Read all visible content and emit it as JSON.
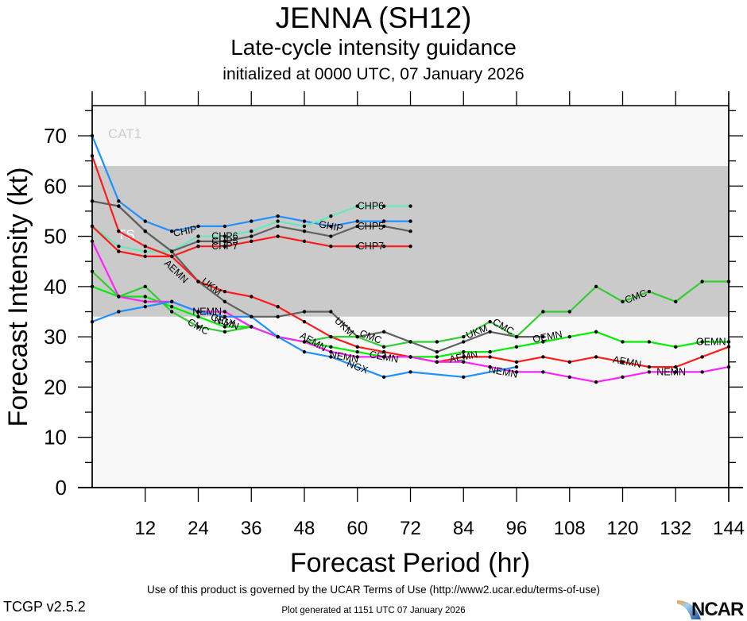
{
  "header": {
    "title": "JENNA (SH12)",
    "subtitle": "Late-cycle intensity guidance",
    "init": "initialized at 0000 UTC, 07 January 2026"
  },
  "footer": {
    "terms": "Use of this product is governed by the UCAR Terms of Use (http://www2.ucar.edu/terms-of-use)",
    "version": "TCGP v2.5.2",
    "generated": "Plot generated at 1151 UTC   07 January 2026",
    "logo_text": "NCAR"
  },
  "chart_data": {
    "type": "line",
    "title": "JENNA (SH12)",
    "subtitle": "Late-cycle intensity guidance",
    "xlabel": "Forecast Period (hr)",
    "ylabel": "Forecast Intensity (kt)",
    "xlim": [
      0,
      144
    ],
    "ylim": [
      0,
      76
    ],
    "xticks": [
      12,
      24,
      36,
      48,
      60,
      72,
      84,
      96,
      108,
      120,
      132,
      144
    ],
    "yticks": [
      0,
      10,
      20,
      30,
      40,
      50,
      60,
      70
    ],
    "grid": false,
    "bands": [
      {
        "label": "CAT1",
        "from": 64,
        "to": 76,
        "color": "#f8f8f8",
        "label_color": "#cccccc"
      },
      {
        "label": "TS",
        "from": 34,
        "to": 64,
        "color": "#cacaca",
        "label_color": "#ffffff"
      },
      {
        "label": "",
        "from": 0,
        "to": 34,
        "color": "#f8f8f8",
        "label_color": "#ffffff"
      }
    ],
    "series": [
      {
        "name": "CHIP",
        "color": "#1e90ff",
        "label_at": [
          [
            21,
            51,
            "CHIP"
          ],
          [
            54,
            52,
            "GHIP"
          ]
        ],
        "x": [
          0,
          6,
          12,
          18,
          24,
          30,
          36,
          42,
          48,
          54,
          60,
          66,
          72
        ],
        "y": [
          70,
          57,
          53,
          51,
          52,
          52,
          53,
          54,
          53,
          52,
          53,
          53,
          53
        ]
      },
      {
        "name": "CHP6",
        "color": "#66e8b8",
        "label_at": [
          [
            30,
            50,
            "CHP6"
          ],
          [
            63,
            56,
            "CHP6"
          ]
        ],
        "x": [
          0,
          6,
          12,
          18,
          24,
          30,
          36,
          42,
          48,
          54,
          60,
          66,
          72
        ],
        "y": [
          52,
          48,
          47,
          47,
          50,
          50,
          51,
          53,
          52,
          54,
          56,
          56,
          56
        ]
      },
      {
        "name": "CHP5",
        "color": "#606060",
        "label_at": [
          [
            30,
            49,
            "CHP5"
          ],
          [
            63,
            52,
            "CHP5"
          ]
        ],
        "x": [
          0,
          6,
          12,
          18,
          24,
          30,
          36,
          42,
          48,
          54,
          60,
          66,
          72
        ],
        "y": [
          57,
          56,
          51,
          47,
          49,
          49,
          50,
          52,
          51,
          50,
          52,
          52,
          51
        ]
      },
      {
        "name": "CHP7",
        "color": "#ff1a1a",
        "label_at": [
          [
            30,
            48,
            "CHP7"
          ],
          [
            63,
            48,
            "CHP7"
          ]
        ],
        "x": [
          0,
          6,
          12,
          18,
          24,
          30,
          36,
          42,
          48,
          54,
          60,
          66,
          72
        ],
        "y": [
          52,
          47,
          46,
          46,
          48,
          48,
          49,
          50,
          49,
          48,
          48,
          48,
          48
        ]
      },
      {
        "name": "UKM",
        "color": "#606060",
        "label_at": [
          [
            27,
            40,
            "UKM"
          ],
          [
            57,
            32,
            "UKM"
          ],
          [
            87,
            31,
            "UKM"
          ]
        ],
        "x": [
          0,
          6,
          12,
          18,
          24,
          30,
          36,
          42,
          48,
          54,
          60,
          66,
          72,
          78,
          84,
          90,
          96,
          102
        ],
        "y": [
          57,
          56,
          51,
          47,
          41,
          37,
          34,
          34,
          35,
          35,
          30,
          31,
          29,
          27,
          29,
          31,
          30,
          30
        ]
      },
      {
        "name": "AEMN",
        "color": "#ff1a1a",
        "label_at": [
          [
            19,
            43,
            "AEMN"
          ],
          [
            50,
            29,
            "AEMN"
          ],
          [
            84,
            26,
            "AEMN"
          ],
          [
            121,
            25,
            "AEMN"
          ]
        ],
        "x": [
          0,
          6,
          12,
          18,
          24,
          30,
          36,
          42,
          48,
          54,
          60,
          66,
          72,
          78,
          84,
          90,
          96,
          102,
          108,
          114,
          120,
          126,
          132,
          138,
          144
        ],
        "y": [
          66,
          51,
          48,
          46,
          41,
          39,
          38,
          36,
          33,
          30,
          28,
          27,
          26,
          25,
          26,
          26,
          25,
          26,
          25,
          26,
          25,
          24,
          24,
          26,
          28
        ]
      },
      {
        "name": "CMC",
        "color": "#33cc33",
        "label_at": [
          [
            24,
            32,
            "CMC"
          ],
          [
            63,
            30,
            "CMC"
          ],
          [
            93,
            32,
            "CMC"
          ],
          [
            123,
            38,
            "CMC"
          ]
        ],
        "x": [
          0,
          6,
          12,
          18,
          24,
          30,
          36,
          42,
          48,
          54,
          60,
          66,
          72,
          78,
          84,
          90,
          96,
          102,
          108,
          114,
          120,
          126,
          132,
          138,
          144
        ],
        "y": [
          43,
          38,
          40,
          35,
          32,
          31,
          32,
          30,
          29,
          30,
          30,
          28,
          29,
          29,
          30,
          33,
          30,
          35,
          35,
          40,
          37,
          39,
          37,
          41,
          41
        ]
      },
      {
        "name": "OEMN",
        "color": "#00ee00",
        "label_at": [
          [
            30,
            33,
            "CEMN"
          ],
          [
            66,
            26,
            "CEMN"
          ],
          [
            103,
            30,
            "OEMN"
          ],
          [
            140,
            29,
            "OEMN"
          ]
        ],
        "x": [
          0,
          6,
          12,
          18,
          24,
          30,
          36,
          42,
          48,
          54,
          60,
          66,
          72,
          78,
          84,
          90,
          96,
          102,
          108,
          114,
          120,
          126,
          132,
          138,
          144
        ],
        "y": [
          40,
          38,
          38,
          36,
          34,
          32,
          32,
          30,
          29,
          28,
          27,
          26,
          26,
          26,
          27,
          27,
          28,
          29,
          30,
          31,
          29,
          29,
          28,
          29,
          29
        ]
      },
      {
        "name": "NEMN",
        "color": "#ff22ff",
        "label_at": [
          [
            26,
            35,
            "NEMN"
          ],
          [
            57,
            26,
            "NEMN"
          ],
          [
            93,
            23,
            "NEMN"
          ],
          [
            131,
            23,
            "NEMN"
          ]
        ],
        "x": [
          0,
          6,
          12,
          18,
          24,
          30,
          36,
          42,
          48,
          54,
          60,
          66,
          72,
          78,
          84,
          90,
          96,
          102,
          108,
          114,
          120,
          126,
          132,
          138,
          144
        ],
        "y": [
          49,
          38,
          37,
          37,
          35,
          35,
          32,
          30,
          29,
          27,
          26,
          26,
          26,
          25,
          25,
          24,
          23,
          23,
          22,
          21,
          22,
          23,
          23,
          23,
          24
        ]
      },
      {
        "name": "NGX",
        "color": "#1e90ff",
        "label_at": [
          [
            30,
            33,
            "NGX"
          ],
          [
            60,
            24,
            "NGX"
          ]
        ],
        "x": [
          0,
          6,
          12,
          18,
          24,
          30,
          36,
          42,
          48,
          54,
          66,
          72,
          84,
          96
        ],
        "y": [
          33,
          35,
          36,
          37,
          35,
          34,
          34,
          30,
          27,
          26,
          22,
          23,
          22,
          24
        ]
      }
    ]
  }
}
